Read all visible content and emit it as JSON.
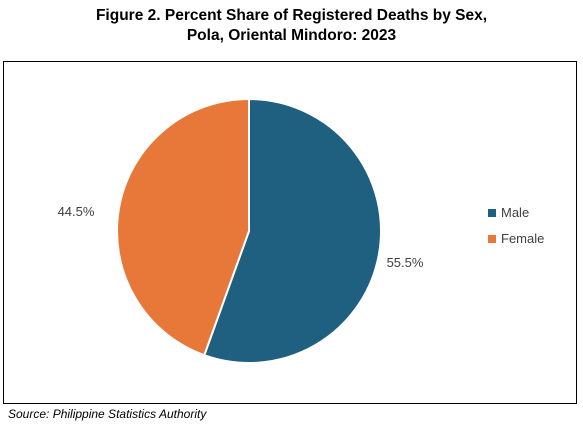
{
  "title": {
    "line1": "Figure 2. Percent Share of Registered Deaths by Sex,",
    "line2": "Pola, Oriental Mindoro: 2023"
  },
  "chart_data": {
    "type": "pie",
    "categories": [
      "Male",
      "Female"
    ],
    "values": [
      55.5,
      44.5
    ],
    "data_labels": [
      "55.5%",
      "44.5%"
    ],
    "colors": [
      "#1f5f7f",
      "#e8773a"
    ],
    "legend": {
      "position": "right",
      "entries": [
        "Male",
        "Female"
      ]
    }
  },
  "source": "Source: Philippine Statistics Authority"
}
